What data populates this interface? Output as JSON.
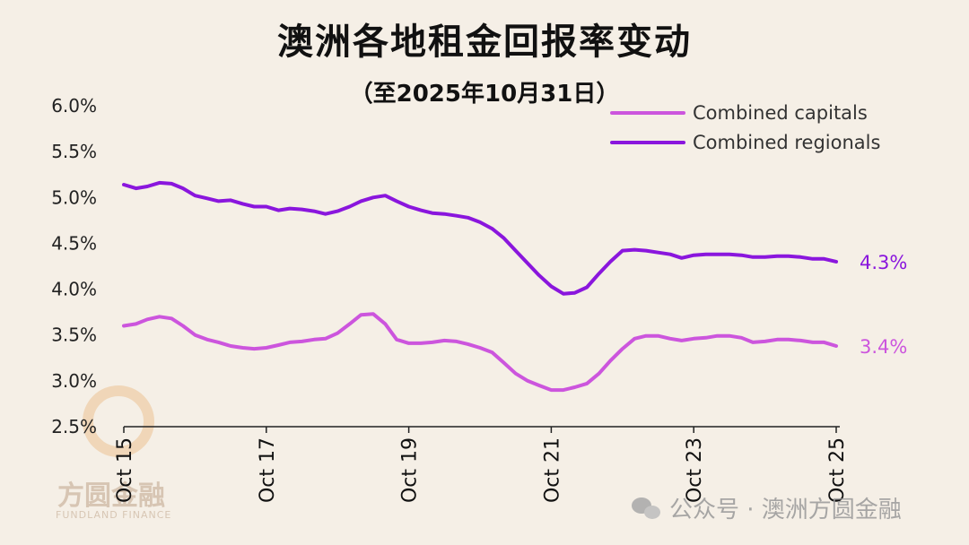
{
  "chart_data": {
    "type": "line",
    "title": "澳洲各地租金回报率变动",
    "subtitle": "（至2025年10月31日）",
    "y_ticks": [
      "6.0%",
      "5.5%",
      "5.0%",
      "4.5%",
      "4.0%",
      "3.5%",
      "3.0%",
      "2.5%"
    ],
    "y_tick_values": [
      6.0,
      5.5,
      5.0,
      4.5,
      4.0,
      3.5,
      3.0,
      2.5
    ],
    "ylim": [
      2.5,
      6.0
    ],
    "x_ticks": [
      "Oct 15",
      "Oct 17",
      "Oct 19",
      "Oct 21",
      "Oct 23",
      "Oct 25"
    ],
    "x_tick_values": [
      2015.75,
      2017.75,
      2019.75,
      2021.75,
      2023.75,
      2025.75
    ],
    "xlim": [
      2015.75,
      2025.75
    ],
    "grid": false,
    "legend_position": "top-right",
    "series": [
      {
        "name": "Combined capitals",
        "color": "#cc55dd",
        "end_label": "3.4%",
        "x": [
          2015.75,
          2015.92,
          2016.08,
          2016.25,
          2016.42,
          2016.58,
          2016.75,
          2016.92,
          2017.08,
          2017.25,
          2017.42,
          2017.58,
          2017.75,
          2017.92,
          2018.08,
          2018.25,
          2018.42,
          2018.58,
          2018.75,
          2018.92,
          2019.08,
          2019.25,
          2019.42,
          2019.58,
          2019.75,
          2019.92,
          2020.08,
          2020.25,
          2020.42,
          2020.58,
          2020.75,
          2020.92,
          2021.08,
          2021.25,
          2021.42,
          2021.58,
          2021.75,
          2021.92,
          2022.08,
          2022.25,
          2022.42,
          2022.58,
          2022.75,
          2022.92,
          2023.08,
          2023.25,
          2023.42,
          2023.58,
          2023.75,
          2023.92,
          2024.08,
          2024.25,
          2024.42,
          2024.58,
          2024.75,
          2024.92,
          2025.08,
          2025.25,
          2025.42,
          2025.58,
          2025.75
        ],
        "values": [
          3.6,
          3.62,
          3.67,
          3.7,
          3.68,
          3.6,
          3.5,
          3.45,
          3.42,
          3.38,
          3.36,
          3.35,
          3.36,
          3.39,
          3.42,
          3.43,
          3.45,
          3.46,
          3.52,
          3.62,
          3.72,
          3.73,
          3.62,
          3.45,
          3.41,
          3.41,
          3.42,
          3.44,
          3.43,
          3.4,
          3.36,
          3.31,
          3.2,
          3.08,
          3.0,
          2.95,
          2.9,
          2.9,
          2.93,
          2.97,
          3.08,
          3.22,
          3.35,
          3.46,
          3.49,
          3.49,
          3.46,
          3.44,
          3.46,
          3.47,
          3.49,
          3.49,
          3.47,
          3.42,
          3.43,
          3.45,
          3.45,
          3.44,
          3.42,
          3.42,
          3.38
        ]
      },
      {
        "name": "Combined regionals",
        "color": "#8a16dd",
        "end_label": "4.3%",
        "x": [
          2015.75,
          2015.92,
          2016.08,
          2016.25,
          2016.42,
          2016.58,
          2016.75,
          2016.92,
          2017.08,
          2017.25,
          2017.42,
          2017.58,
          2017.75,
          2017.92,
          2018.08,
          2018.25,
          2018.42,
          2018.58,
          2018.75,
          2018.92,
          2019.08,
          2019.25,
          2019.42,
          2019.58,
          2019.75,
          2019.92,
          2020.08,
          2020.25,
          2020.42,
          2020.58,
          2020.75,
          2020.92,
          2021.08,
          2021.25,
          2021.42,
          2021.58,
          2021.75,
          2021.92,
          2022.08,
          2022.25,
          2022.42,
          2022.58,
          2022.75,
          2022.92,
          2023.08,
          2023.25,
          2023.42,
          2023.58,
          2023.75,
          2023.92,
          2024.08,
          2024.25,
          2024.42,
          2024.58,
          2024.75,
          2024.92,
          2025.08,
          2025.25,
          2025.42,
          2025.58,
          2025.75
        ],
        "values": [
          5.14,
          5.1,
          5.12,
          5.16,
          5.15,
          5.1,
          5.02,
          4.99,
          4.96,
          4.97,
          4.93,
          4.9,
          4.9,
          4.86,
          4.88,
          4.87,
          4.85,
          4.82,
          4.85,
          4.9,
          4.96,
          5.0,
          5.02,
          4.96,
          4.9,
          4.86,
          4.83,
          4.82,
          4.8,
          4.78,
          4.73,
          4.66,
          4.56,
          4.42,
          4.28,
          4.15,
          4.03,
          3.95,
          3.96,
          4.02,
          4.17,
          4.3,
          4.42,
          4.43,
          4.42,
          4.4,
          4.38,
          4.34,
          4.37,
          4.38,
          4.38,
          4.38,
          4.37,
          4.35,
          4.35,
          4.36,
          4.36,
          4.35,
          4.33,
          4.33,
          4.3
        ]
      }
    ]
  },
  "watermark": {
    "brand_main": "方圆金融",
    "brand_sub": "FUNDLAND FINANCE",
    "icon": "wechat-icon",
    "text": "公众号 · 澳洲方圆金融"
  }
}
